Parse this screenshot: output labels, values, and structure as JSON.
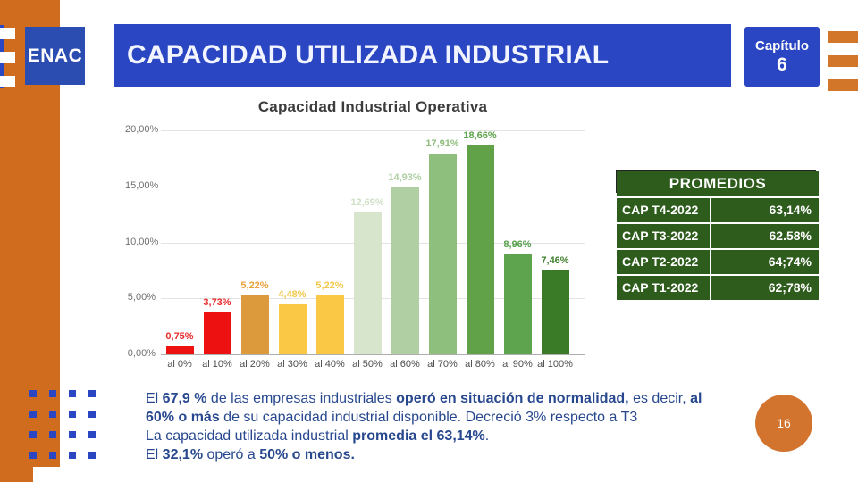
{
  "slide": {
    "logo_text": "ENAC",
    "title": "CAPACIDAD UTILIZADA INDUSTRIAL",
    "chapter_label": "Capítulo",
    "chapter_number": "6",
    "page_number": "16"
  },
  "chart_data": {
    "type": "bar",
    "title": "Capacidad Industrial Operativa",
    "categories": [
      "al 0%",
      "al 10%",
      "al 20%",
      "al 30%",
      "al 40%",
      "al 50%",
      "al 60%",
      "al 70%",
      "al 80%",
      "al 90%",
      "al 100%"
    ],
    "values": [
      0.75,
      3.73,
      5.22,
      4.48,
      5.22,
      12.69,
      14.93,
      17.91,
      18.66,
      8.96,
      7.46
    ],
    "value_labels": [
      "0,75%",
      "3,73%",
      "5,22%",
      "4,48%",
      "5,22%",
      "12,69%",
      "14,93%",
      "17,91%",
      "18,66%",
      "8,96%",
      "7,46%"
    ],
    "bar_colors": [
      "#ee1111",
      "#ee1111",
      "#dd9a3d",
      "#fbc846",
      "#fbc846",
      "#d7e5cd",
      "#b0d0a4",
      "#8fbf7d",
      "#61a148",
      "#5ea34e",
      "#3a7b27"
    ],
    "label_colors": [
      "#e82c2c",
      "#e82c2c",
      "#e8a23c",
      "#f2c94c",
      "#f2c94c",
      "#cfe0c5",
      "#aecfa2",
      "#8fbf7d",
      "#5da24a",
      "#55a04b",
      "#3f7f2a"
    ],
    "y_ticks": [
      "20,00%",
      "15,00%",
      "10,00%",
      "5,00%",
      "0,00%"
    ],
    "ylim": [
      0,
      20
    ],
    "grid": true,
    "legend": "none",
    "xlabel": "",
    "ylabel": ""
  },
  "table": {
    "header": "PROMEDIOS",
    "rows": [
      {
        "label": "CAP T4-2022",
        "value": "63,14%"
      },
      {
        "label": "CAP T3-2022",
        "value": "62.58%"
      },
      {
        "label": "CAP T2-2022",
        "value": "64;74%"
      },
      {
        "label": "CAP T1-2022",
        "value": "62;78%"
      }
    ]
  },
  "summary": {
    "lines": [
      [
        {
          "t": "El ",
          "b": false
        },
        {
          "t": "67,9 %",
          "b": true
        },
        {
          "t": " de las empresas industriales ",
          "b": false
        },
        {
          "t": "operó en situación de normalidad,",
          "b": true
        },
        {
          "t": " es decir, ",
          "b": false
        },
        {
          "t": "al",
          "b": true
        }
      ],
      [
        {
          "t": "60% o más",
          "b": true
        },
        {
          "t": " de su capacidad industrial disponible. Decreció 3% respecto a T3",
          "b": false
        }
      ],
      [
        {
          "t": "La capacidad utilizada industrial ",
          "b": false
        },
        {
          "t": "promedia el 63,14%",
          "b": true
        },
        {
          "t": ".",
          "b": false
        }
      ],
      [
        {
          "t": "El ",
          "b": false
        },
        {
          "t": "32,1%",
          "b": true
        },
        {
          "t": " operó a ",
          "b": false
        },
        {
          "t": "50% o menos.",
          "b": true
        }
      ]
    ]
  },
  "colors": {
    "brand_blue": "#2a46c2",
    "accent_orange": "#cf6c1e",
    "table_green": "#2e5c1c",
    "summary_text_blue": "#27488f",
    "page_badge_orange": "#d2732e"
  }
}
